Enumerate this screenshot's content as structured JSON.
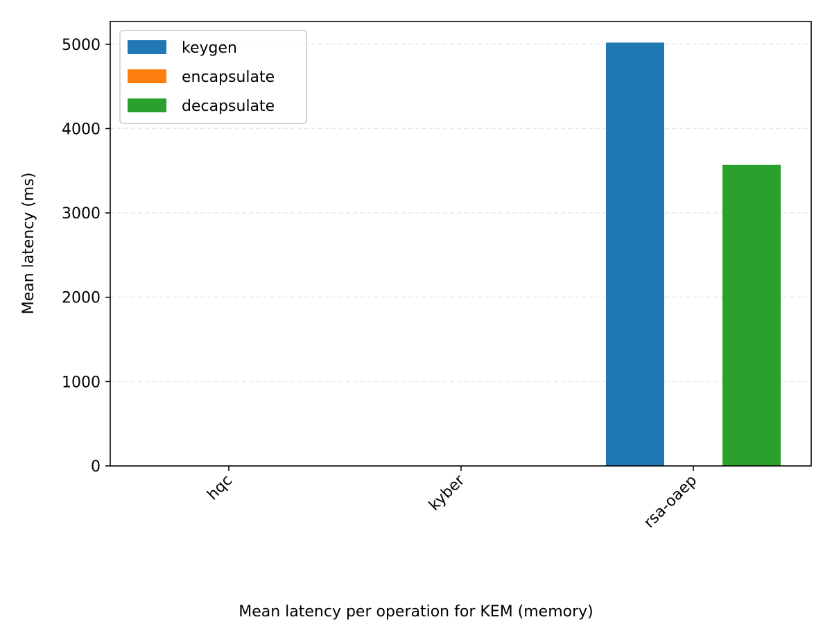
{
  "chart_data": {
    "type": "bar",
    "categories": [
      "hqc",
      "kyber",
      "rsa-oaep"
    ],
    "series": [
      {
        "name": "keygen",
        "color": "#1f77b4",
        "values": [
          0.4,
          0.1,
          5020
        ]
      },
      {
        "name": "encapsulate",
        "color": "#ff7f0e",
        "values": [
          0.6,
          0.1,
          2
        ]
      },
      {
        "name": "decapsulate",
        "color": "#2ca02c",
        "values": [
          1.0,
          0.1,
          3570
        ]
      }
    ],
    "title": "",
    "xlabel": "Mean latency per operation for KEM (memory)",
    "ylabel": "Mean latency (ms)",
    "ylim": [
      0,
      5270
    ],
    "yticks": [
      0,
      1000,
      2000,
      3000,
      4000,
      5000
    ],
    "ytick_labels": [
      "0",
      "1000",
      "2000",
      "3000",
      "4000",
      "5000"
    ],
    "grid": "y-dashed",
    "legend": "top-left"
  }
}
